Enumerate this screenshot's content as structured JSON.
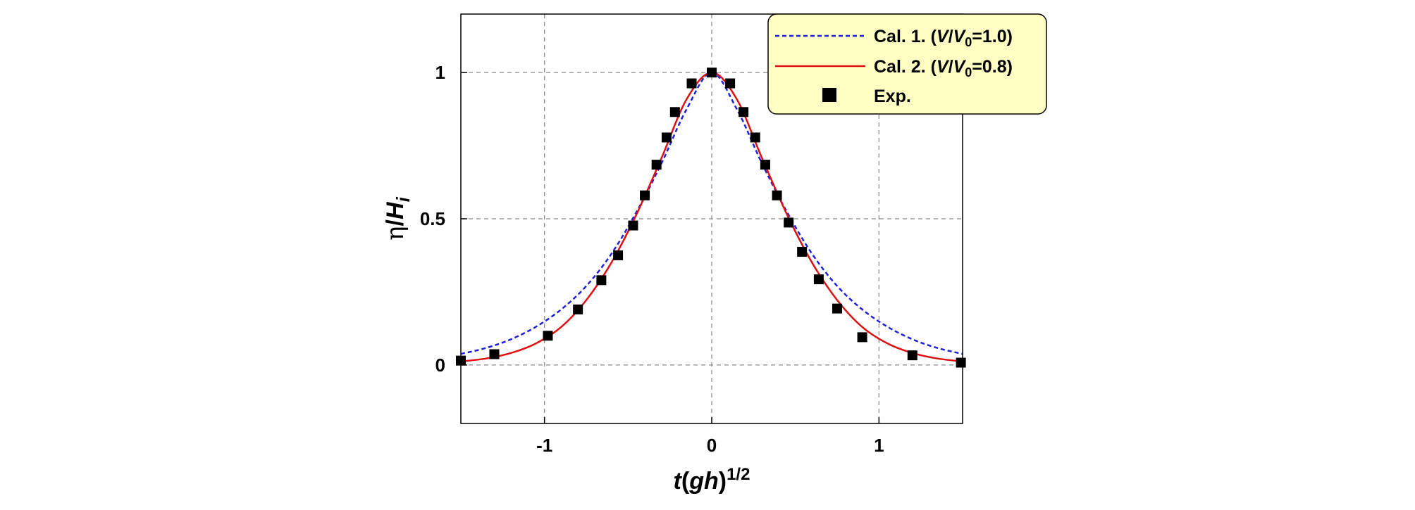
{
  "chart_data": {
    "type": "line",
    "title": "",
    "xlabel": {
      "t": "t",
      "open": "(",
      "gh": "gh",
      "close": ")",
      "exp": "1/2"
    },
    "ylabel": {
      "eta": "η",
      "slash": "/",
      "H": "H",
      "sub": "i"
    },
    "xlim": [
      -1.5,
      1.5
    ],
    "ylim": [
      -0.2,
      1.2
    ],
    "xticks": [
      -1,
      0,
      1
    ],
    "xtick_labels": [
      "-1",
      "0",
      "1"
    ],
    "yticks": [
      0,
      0.5,
      1
    ],
    "ytick_labels": [
      "0",
      "0.5",
      "1"
    ],
    "grid": true,
    "legend_position": "top-right",
    "series": [
      {
        "name": "Cal. 1. (V/V0=1.0)",
        "legend": {
          "prefix": "Cal. 1. (",
          "V": "V",
          "slash": "/",
          "V0": "V",
          "sub": "0",
          "suffix": "=1.0)"
        },
        "kind": "line",
        "style": "dashed",
        "color": "#1f1fe0",
        "x": [
          -1.5,
          -1.35,
          -1.2,
          -1.05,
          -0.9,
          -0.75,
          -0.6,
          -0.45,
          -0.3,
          -0.15,
          0.0,
          0.15,
          0.3,
          0.45,
          0.6,
          0.75,
          0.9,
          1.05,
          1.2,
          1.35,
          1.5
        ],
        "y": [
          0.038,
          0.058,
          0.088,
          0.131,
          0.19,
          0.27,
          0.38,
          0.523,
          0.69,
          0.875,
          1.0,
          0.875,
          0.69,
          0.523,
          0.38,
          0.27,
          0.19,
          0.131,
          0.088,
          0.058,
          0.038
        ]
      },
      {
        "name": "Cal. 2. (V/V0=0.8)",
        "legend": {
          "prefix": "Cal. 2. (",
          "V": "V",
          "slash": "/",
          "V0": "V",
          "sub": "0",
          "suffix": "=0.8)"
        },
        "kind": "line",
        "style": "solid",
        "color": "#e01010",
        "x": [
          -1.5,
          -1.35,
          -1.2,
          -1.05,
          -0.9,
          -0.75,
          -0.6,
          -0.45,
          -0.3,
          -0.15,
          0.0,
          0.15,
          0.3,
          0.45,
          0.6,
          0.75,
          0.9,
          1.05,
          1.2,
          1.35,
          1.5
        ],
        "y": [
          0.012,
          0.022,
          0.041,
          0.074,
          0.13,
          0.222,
          0.35,
          0.515,
          0.708,
          0.909,
          1.0,
          0.909,
          0.708,
          0.515,
          0.35,
          0.222,
          0.13,
          0.074,
          0.041,
          0.022,
          0.012
        ]
      },
      {
        "name": "Exp.",
        "legend": {
          "prefix": "Exp.",
          "V": "",
          "slash": "",
          "V0": "",
          "sub": "",
          "suffix": ""
        },
        "kind": "scatter",
        "marker": "square",
        "color": "#000000",
        "x": [
          -1.5,
          -1.3,
          -0.98,
          -0.8,
          -0.66,
          -0.56,
          -0.47,
          -0.4,
          -0.33,
          -0.27,
          -0.22,
          -0.12,
          0.0,
          0.11,
          0.19,
          0.26,
          0.32,
          0.39,
          0.46,
          0.54,
          0.64,
          0.75,
          0.9,
          1.2,
          1.49
        ],
        "y": [
          0.015,
          0.037,
          0.1,
          0.19,
          0.29,
          0.375,
          0.477,
          0.58,
          0.685,
          0.778,
          0.865,
          0.963,
          1.0,
          0.963,
          0.865,
          0.778,
          0.685,
          0.58,
          0.487,
          0.387,
          0.293,
          0.193,
          0.095,
          0.033,
          0.008
        ]
      }
    ]
  }
}
